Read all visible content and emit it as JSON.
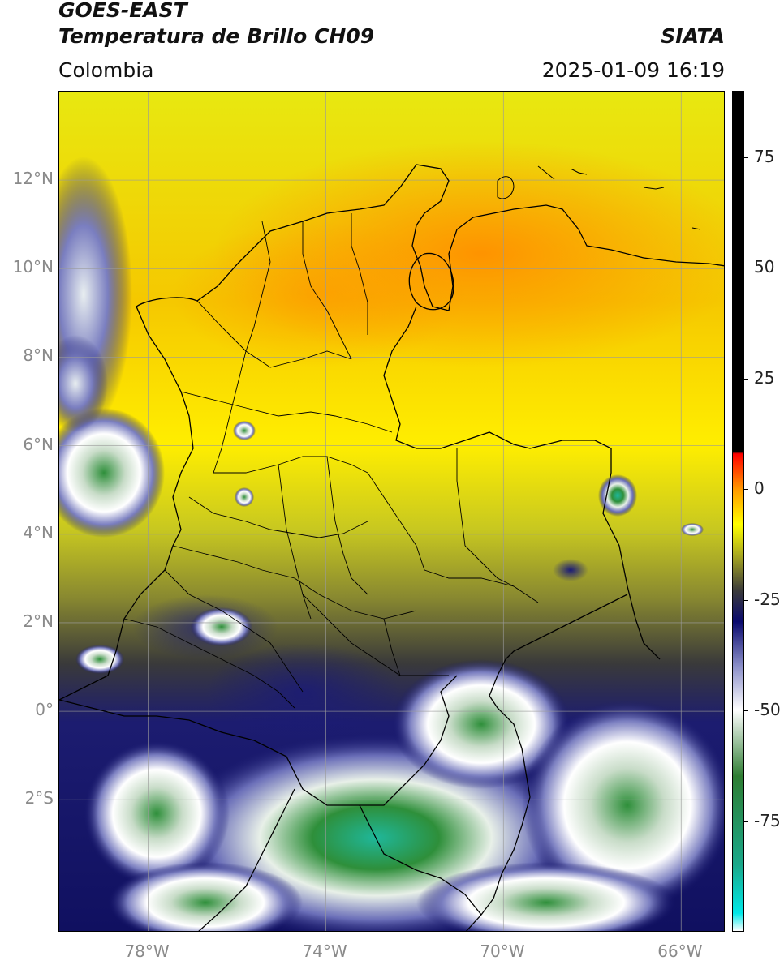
{
  "header": {
    "satellite": "GOES-EAST",
    "product": "Temperatura de Brillo CH09",
    "region": "Colombia",
    "org": "SIATA",
    "timestamp": "2025-01-09 16:19"
  },
  "map": {
    "lat_labels": [
      "12°N",
      "10°N",
      "8°N",
      "6°N",
      "4°N",
      "2°N",
      "0°",
      "2°S"
    ],
    "lon_labels": [
      "78°W",
      "74°W",
      "70°W",
      "66°W"
    ],
    "lat_values": [
      12,
      10,
      8,
      6,
      4,
      2,
      0,
      -2
    ],
    "lon_values": [
      -78,
      -74,
      -70,
      -66
    ],
    "extent": {
      "lon_min": -80.0,
      "lon_max": -65.0,
      "lat_min": -5.0,
      "lat_max": 14.0
    },
    "grid": true
  },
  "colorbar": {
    "tick_labels": [
      "75",
      "50",
      "25",
      "0",
      "-25",
      "-50",
      "-75"
    ],
    "tick_values": [
      75,
      50,
      25,
      0,
      -25,
      -50,
      -75
    ],
    "range": [
      -100,
      90
    ],
    "stops": [
      {
        "v": -100,
        "c": "#ffffff"
      },
      {
        "v": -96,
        "c": "#00e8e8"
      },
      {
        "v": -85,
        "c": "#1aa88a"
      },
      {
        "v": -65,
        "c": "#2e7d32"
      },
      {
        "v": -50,
        "c": "#ffffff"
      },
      {
        "v": -40,
        "c": "#8a8ec8"
      },
      {
        "v": -30,
        "c": "#0a0a6e"
      },
      {
        "v": -23,
        "c": "#3a3a3a"
      },
      {
        "v": -15,
        "c": "#a8a820"
      },
      {
        "v": -8,
        "c": "#ffff00"
      },
      {
        "v": 0,
        "c": "#ff9900"
      },
      {
        "v": 8,
        "c": "#ff0000"
      },
      {
        "v": 8.5,
        "c": "#000000"
      },
      {
        "v": 90,
        "c": "#000000"
      }
    ]
  }
}
